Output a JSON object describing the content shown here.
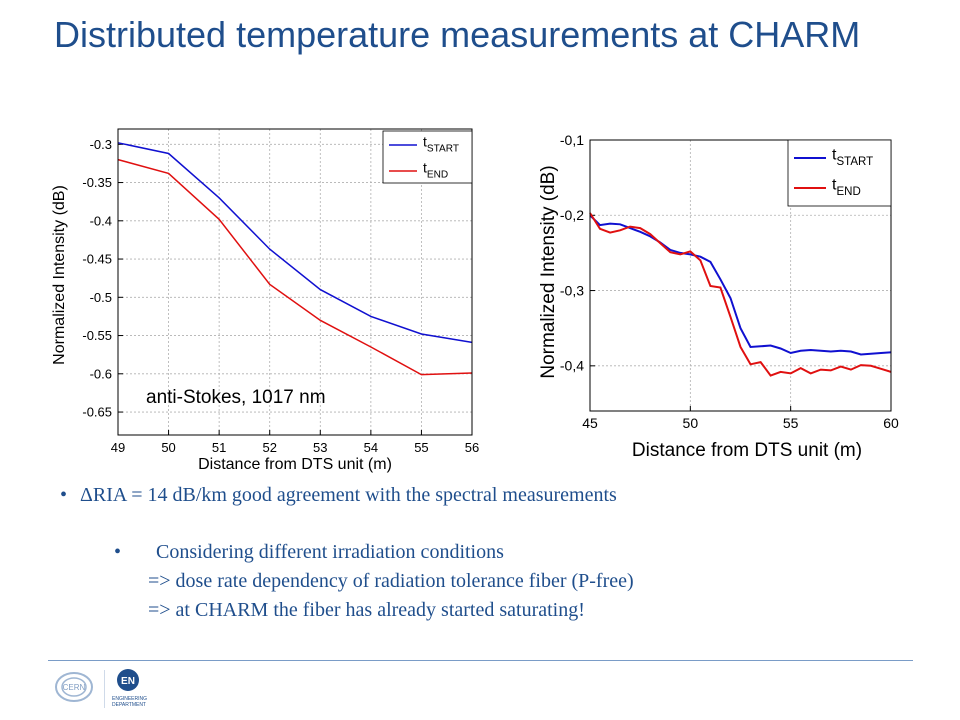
{
  "slide": {
    "title": "Distributed temperature measurements at CHARM"
  },
  "bullets": {
    "delta_ria": "ΔRIA = 14 dB/km  good agreement with the spectral measurements",
    "considering": "Considering different irradiation conditions",
    "dose_rate": "=> dose rate dependency of radiation tolerance fiber (P-free)",
    "saturating": "=> at CHARM the fiber has already started saturating!"
  },
  "footer": {
    "cern_logo_text": "CERN",
    "en_logo_text": "EN",
    "en_department_text": "ENGINEERING DEPARTMENT"
  },
  "colors": {
    "title": "#1f4e8c",
    "series_start": "#1010d0",
    "series_end": "#e01010"
  },
  "chart_data": [
    {
      "type": "line",
      "xlabel": "Distance from DTS unit (m)",
      "ylabel": "Normalized Intensity (dB)",
      "annotation": "anti-Stokes, 1017 nm",
      "xlim": [
        49,
        56
      ],
      "ylim": [
        -0.68,
        -0.28
      ],
      "xticks": [
        "49",
        "50",
        "51",
        "52",
        "53",
        "54",
        "55",
        "56"
      ],
      "yticks": [
        "-0.3",
        "-0.35",
        "-0.4",
        "-0.45",
        "-0.5",
        "-0.55",
        "-0.6",
        "-0.65"
      ],
      "grid": true,
      "legend_position": "top-right",
      "series": [
        {
          "legend_main": "t",
          "legend_sub": "START",
          "color": "#1010d0",
          "x": [
            49,
            50,
            51,
            52,
            53,
            54,
            55,
            56
          ],
          "y": [
            -0.298,
            -0.312,
            -0.37,
            -0.437,
            -0.49,
            -0.525,
            -0.548,
            -0.559
          ]
        },
        {
          "legend_main": "t",
          "legend_sub": "END",
          "color": "#e01010",
          "x": [
            49,
            50,
            51,
            52,
            53,
            54,
            55,
            56
          ],
          "y": [
            -0.32,
            -0.338,
            -0.398,
            -0.483,
            -0.53,
            -0.565,
            -0.601,
            -0.599
          ]
        }
      ]
    },
    {
      "type": "line",
      "xlabel": "Distance from DTS unit (m)",
      "ylabel": "Normalized Intensity (dB)",
      "xlim": [
        45,
        60
      ],
      "ylim": [
        -0.46,
        -0.1
      ],
      "xticks": [
        "45",
        "50",
        "55",
        "60"
      ],
      "yticks": [
        "-0,1",
        "-0,2",
        "-0,3",
        "-0,4"
      ],
      "grid": true,
      "legend_position": "top-right",
      "series": [
        {
          "legend_main": "t",
          "legend_sub": "START",
          "color": "#1010d0",
          "x": [
            45,
            45.5,
            46,
            46.5,
            47,
            47.5,
            48,
            48.5,
            49,
            49.5,
            50,
            50.5,
            51,
            51.5,
            52,
            52.5,
            53,
            53.5,
            54,
            54.5,
            55,
            55.5,
            56,
            56.5,
            57,
            57.5,
            58,
            58.5,
            59,
            59.5,
            60
          ],
          "y": [
            -0.2,
            -0.213,
            -0.211,
            -0.212,
            -0.217,
            -0.222,
            -0.228,
            -0.236,
            -0.246,
            -0.25,
            -0.252,
            -0.255,
            -0.262,
            -0.285,
            -0.31,
            -0.35,
            -0.375,
            -0.374,
            -0.373,
            -0.377,
            -0.383,
            -0.38,
            -0.379,
            -0.38,
            -0.381,
            -0.38,
            -0.381,
            -0.385,
            -0.384,
            -0.383,
            -0.382
          ]
        },
        {
          "legend_main": "t",
          "legend_sub": "END",
          "color": "#e01010",
          "x": [
            45,
            45.5,
            46,
            46.5,
            47,
            47.5,
            48,
            48.5,
            49,
            49.5,
            50,
            50.5,
            51,
            51.5,
            52,
            52.5,
            53,
            53.5,
            54,
            54.5,
            55,
            55.5,
            56,
            56.5,
            57,
            57.5,
            58,
            58.5,
            59,
            59.5,
            60
          ],
          "y": [
            -0.197,
            -0.218,
            -0.223,
            -0.22,
            -0.215,
            -0.217,
            -0.225,
            -0.237,
            -0.249,
            -0.252,
            -0.248,
            -0.26,
            -0.294,
            -0.296,
            -0.335,
            -0.375,
            -0.398,
            -0.395,
            -0.413,
            -0.408,
            -0.41,
            -0.403,
            -0.41,
            -0.405,
            -0.406,
            -0.401,
            -0.405,
            -0.399,
            -0.4,
            -0.404,
            -0.408
          ]
        }
      ]
    }
  ]
}
